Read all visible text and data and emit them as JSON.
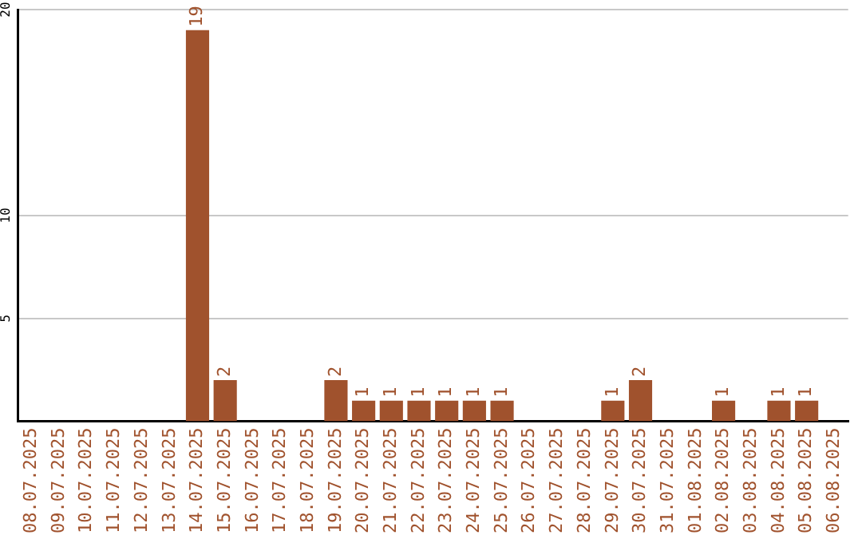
{
  "chart_data": {
    "type": "bar",
    "categories": [
      "08.07.2025",
      "09.07.2025",
      "10.07.2025",
      "11.07.2025",
      "12.07.2025",
      "13.07.2025",
      "14.07.2025",
      "15.07.2025",
      "16.07.2025",
      "17.07.2025",
      "18.07.2025",
      "19.07.2025",
      "20.07.2025",
      "21.07.2025",
      "22.07.2025",
      "23.07.2025",
      "24.07.2025",
      "25.07.2025",
      "26.07.2025",
      "27.07.2025",
      "28.07.2025",
      "29.07.2025",
      "30.07.2025",
      "31.07.2025",
      "01.08.2025",
      "02.08.2025",
      "03.08.2025",
      "04.08.2025",
      "05.08.2025",
      "06.08.2025"
    ],
    "values": [
      0,
      0,
      0,
      0,
      0,
      0,
      19,
      2,
      0,
      0,
      0,
      2,
      1,
      1,
      1,
      1,
      1,
      1,
      0,
      0,
      0,
      1,
      2,
      0,
      0,
      1,
      0,
      1,
      1,
      0
    ],
    "value_labels": [
      null,
      null,
      null,
      null,
      null,
      null,
      "19",
      "2",
      null,
      null,
      null,
      "2",
      "1",
      "1",
      "1",
      "1",
      "1",
      "1",
      null,
      null,
      null,
      "1",
      "2",
      null,
      null,
      "1",
      null,
      "1",
      "1",
      null
    ],
    "color": "#a0522d",
    "ylim": [
      0,
      20
    ],
    "yticks": [
      5,
      10,
      20
    ],
    "grid": "y",
    "legend": false
  }
}
